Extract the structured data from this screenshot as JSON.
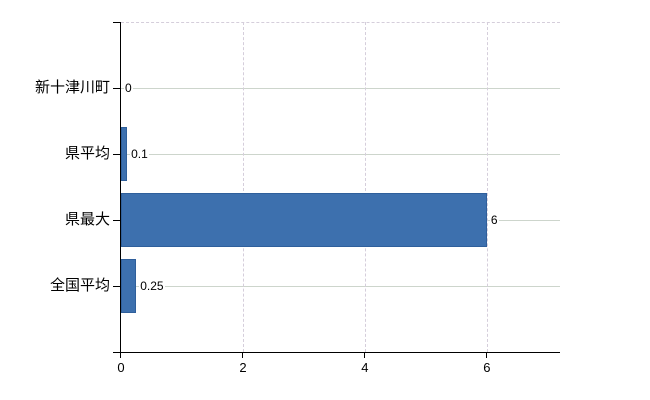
{
  "chart_data": {
    "type": "bar",
    "orientation": "horizontal",
    "title": "",
    "xlabel": "",
    "ylabel": "",
    "categories": [
      "新十津川町",
      "県平均",
      "県最大",
      "全国平均"
    ],
    "values": [
      0,
      0.1,
      6,
      0.25
    ],
    "value_labels": [
      "0",
      "0.1",
      "6",
      "0.25"
    ],
    "xticks": [
      0,
      2,
      4,
      6
    ],
    "xtick_labels": [
      "0",
      "2",
      "4",
      "6"
    ],
    "xlim": [
      0,
      7.2
    ],
    "grid": true,
    "legend": false,
    "colors": {
      "bar": "#3d70ae",
      "bar_border": "#2f5f9b",
      "h_gridline": "#cdd5cc",
      "v_gridline": "#d5cedb",
      "axis": "#000000",
      "text": "#000000",
      "background": "#ffffff"
    }
  }
}
